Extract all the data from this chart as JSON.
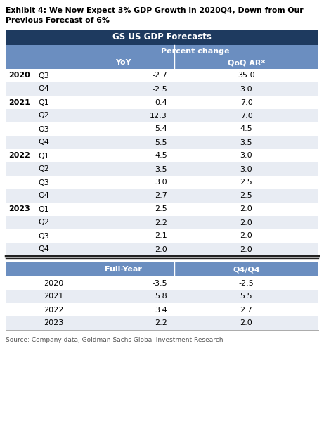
{
  "title_line1": "Exhibit 4: We Now Expect 3% GDP Growth in 2020Q4, Down from Our",
  "title_line2": "Previous Forecast of 6%",
  "table_title": "GS US GDP Forecasts",
  "header_color": "#1E3A5F",
  "subheader_color": "#6B8EC0",
  "alt_row_color": "#E8ECF3",
  "white_row_color": "#FFFFFF",
  "source_text": "Source: Company data, Goldman Sachs Global Investment Research",
  "quarterly_data": [
    [
      "2020",
      "Q3",
      "-2.7",
      "35.0"
    ],
    [
      "",
      "Q4",
      "-2.5",
      "3.0"
    ],
    [
      "2021",
      "Q1",
      "0.4",
      "7.0"
    ],
    [
      "",
      "Q2",
      "12.3",
      "7.0"
    ],
    [
      "",
      "Q3",
      "5.4",
      "4.5"
    ],
    [
      "",
      "Q4",
      "5.5",
      "3.5"
    ],
    [
      "2022",
      "Q1",
      "4.5",
      "3.0"
    ],
    [
      "",
      "Q2",
      "3.5",
      "3.0"
    ],
    [
      "",
      "Q3",
      "3.0",
      "2.5"
    ],
    [
      "",
      "Q4",
      "2.7",
      "2.5"
    ],
    [
      "2023",
      "Q1",
      "2.5",
      "2.0"
    ],
    [
      "",
      "Q2",
      "2.2",
      "2.0"
    ],
    [
      "",
      "Q3",
      "2.1",
      "2.0"
    ],
    [
      "",
      "Q4",
      "2.0",
      "2.0"
    ]
  ],
  "annual_data": [
    [
      "2020",
      "-3.5",
      "-2.5"
    ],
    [
      "2021",
      "5.8",
      "5.5"
    ],
    [
      "2022",
      "3.4",
      "2.7"
    ],
    [
      "2023",
      "2.2",
      "2.0"
    ]
  ],
  "fig_width": 4.61,
  "fig_height": 6.0,
  "dpi": 100
}
